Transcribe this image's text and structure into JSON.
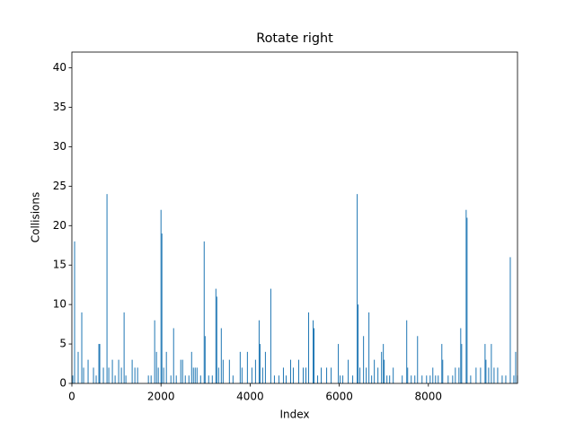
{
  "chart_data": {
    "type": "bar",
    "title": "Rotate right",
    "xlabel": "Index",
    "ylabel": "Collisions",
    "color": "#1f77b4",
    "x": [
      20,
      61,
      141,
      222,
      263,
      364,
      485,
      545,
      606,
      626,
      707,
      788,
      828,
      909,
      970,
      1050,
      1111,
      1172,
      1212,
      1353,
      1414,
      1475,
      1717,
      1778,
      1858,
      1899,
      1939,
      2000,
      2020,
      2060,
      2121,
      2222,
      2283,
      2343,
      2444,
      2485,
      2545,
      2626,
      2687,
      2727,
      2767,
      2808,
      2889,
      2969,
      2990,
      3070,
      3151,
      3232,
      3252,
      3293,
      3353,
      3394,
      3535,
      3616,
      3777,
      3818,
      3939,
      4040,
      4121,
      4202,
      4222,
      4282,
      4343,
      4464,
      4545,
      4646,
      4747,
      4808,
      4909,
      4969,
      5090,
      5191,
      5252,
      5313,
      5414,
      5434,
      5515,
      5595,
      5717,
      5818,
      5979,
      6020,
      6080,
      6201,
      6302,
      6403,
      6424,
      6464,
      6545,
      6605,
      6666,
      6727,
      6787,
      6868,
      6949,
      6989,
      7009,
      7070,
      7131,
      7211,
      7413,
      7514,
      7535,
      7615,
      7696,
      7757,
      7858,
      7959,
      8040,
      8100,
      8161,
      8221,
      8302,
      8322,
      8444,
      8545,
      8605,
      8686,
      8726,
      8747,
      8848,
      8868,
      8949,
      9070,
      9171,
      9272,
      9292,
      9353,
      9413,
      9474,
      9555,
      9656,
      9737,
      9838,
      9918,
      9959,
      9999
    ],
    "values": [
      1,
      18,
      4,
      9,
      2,
      3,
      2,
      1,
      5,
      5,
      2,
      24,
      2,
      3,
      1,
      3,
      2,
      9,
      1,
      3,
      2,
      2,
      1,
      1,
      8,
      4,
      2,
      22,
      19,
      2,
      4,
      1,
      7,
      1,
      3,
      3,
      1,
      1,
      4,
      2,
      2,
      2,
      1,
      18,
      6,
      1,
      1,
      12,
      11,
      2,
      7,
      3,
      3,
      1,
      4,
      2,
      4,
      2,
      3,
      8,
      5,
      2,
      4,
      12,
      1,
      1,
      2,
      1,
      3,
      2,
      3,
      2,
      2,
      9,
      8,
      7,
      1,
      2,
      2,
      2,
      5,
      1,
      1,
      3,
      1,
      24,
      10,
      2,
      6,
      2,
      9,
      1,
      3,
      2,
      4,
      5,
      3,
      1,
      1,
      2,
      1,
      8,
      2,
      1,
      1,
      6,
      1,
      1,
      1,
      2,
      1,
      1,
      5,
      3,
      1,
      1,
      2,
      2,
      7,
      5,
      22,
      21,
      1,
      2,
      2,
      5,
      3,
      2,
      5,
      2,
      2,
      1,
      1,
      16,
      1,
      4,
      1
    ],
    "xlim": [
      0,
      10000
    ],
    "ylim": [
      0,
      42
    ],
    "xticks": [
      0,
      2000,
      4000,
      6000,
      8000
    ],
    "yticks": [
      0,
      5,
      10,
      15,
      20,
      25,
      30,
      35,
      40
    ]
  }
}
